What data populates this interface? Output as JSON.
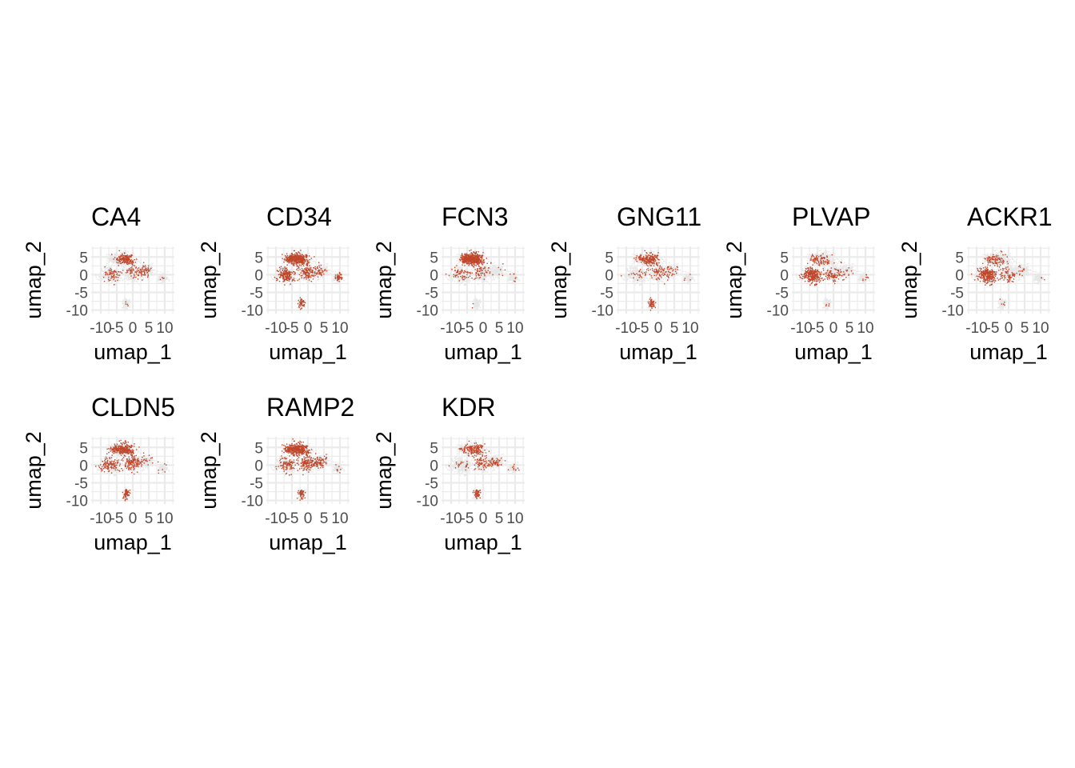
{
  "figure": {
    "colors": {
      "background": "#ffffff",
      "grid": "#ebebeb",
      "low": "#e6e6e6",
      "high": "#c0462a",
      "tick_text": "#4d4d4d",
      "text": "#000000"
    }
  },
  "chart_data": [
    {
      "type": "scatter",
      "title": "CA4",
      "xlabel": "umap_1",
      "ylabel": "umap_2",
      "xticks": [
        -10,
        -5,
        0,
        5,
        10
      ],
      "yticks": [
        5,
        0,
        -5,
        -10
      ],
      "xlim": [
        -13,
        13
      ],
      "ylim": [
        -11,
        8
      ],
      "grid": true,
      "hotspots": [
        {
          "x": -1,
          "y": 4,
          "r": 3.5,
          "w": 0.5
        },
        {
          "x": 3,
          "y": 1,
          "r": 3,
          "w": 0.4
        },
        {
          "x": -6,
          "y": 0,
          "r": 3,
          "w": 0.25
        }
      ]
    },
    {
      "type": "scatter",
      "title": "CD34",
      "xlabel": "umap_1",
      "ylabel": "umap_2",
      "xticks": [
        -10,
        -5,
        0,
        5,
        10
      ],
      "yticks": [
        5,
        0,
        -5,
        -10
      ],
      "xlim": [
        -13,
        13
      ],
      "ylim": [
        -11,
        8
      ],
      "grid": true,
      "hotspots": [
        {
          "x": -3,
          "y": 4,
          "r": 5,
          "w": 0.75
        },
        {
          "x": -7,
          "y": 0,
          "r": 4,
          "w": 0.5
        },
        {
          "x": 0,
          "y": 0,
          "r": 5,
          "w": 0.45
        },
        {
          "x": -2,
          "y": -8,
          "r": 3,
          "w": 0.45
        },
        {
          "x": 10,
          "y": -1,
          "r": 2.5,
          "w": 0.35
        }
      ]
    },
    {
      "type": "scatter",
      "title": "FCN3",
      "xlabel": "umap_1",
      "ylabel": "umap_2",
      "xticks": [
        -10,
        -5,
        0,
        5,
        10
      ],
      "yticks": [
        5,
        0,
        -5,
        -10
      ],
      "xlim": [
        -13,
        13
      ],
      "ylim": [
        -11,
        8
      ],
      "grid": true,
      "hotspots": [
        {
          "x": -3,
          "y": 4.5,
          "r": 4.5,
          "w": 0.92
        },
        {
          "x": -8,
          "y": 2,
          "r": 3,
          "w": 0.35
        }
      ]
    },
    {
      "type": "scatter",
      "title": "GNG11",
      "xlabel": "umap_1",
      "ylabel": "umap_2",
      "xticks": [
        -10,
        -5,
        0,
        5,
        10
      ],
      "yticks": [
        5,
        0,
        -5,
        -10
      ],
      "xlim": [
        -13,
        13
      ],
      "ylim": [
        -11,
        8
      ],
      "grid": true,
      "hotspots": [
        {
          "x": -2,
          "y": 4,
          "r": 5,
          "w": 0.35
        },
        {
          "x": -2,
          "y": -8,
          "r": 2.5,
          "w": 0.55
        },
        {
          "x": 2,
          "y": 0,
          "r": 4,
          "w": 0.25
        }
      ]
    },
    {
      "type": "scatter",
      "title": "PLVAP",
      "xlabel": "umap_1",
      "ylabel": "umap_2",
      "xticks": [
        -10,
        -5,
        0,
        5,
        10
      ],
      "yticks": [
        5,
        0,
        -5,
        -10
      ],
      "xlim": [
        -13,
        13
      ],
      "ylim": [
        -11,
        8
      ],
      "grid": true,
      "hotspots": [
        {
          "x": -6,
          "y": -1,
          "r": 5,
          "w": 0.85
        },
        {
          "x": 1,
          "y": -1.5,
          "r": 2.5,
          "w": 0.65
        }
      ]
    },
    {
      "type": "scatter",
      "title": "ACKR1",
      "xlabel": "umap_1",
      "ylabel": "umap_2",
      "xticks": [
        -10,
        -5,
        0,
        5,
        10
      ],
      "yticks": [
        5,
        0,
        -5,
        -10
      ],
      "xlim": [
        -13,
        13
      ],
      "ylim": [
        -11,
        8
      ],
      "grid": true,
      "hotspots": [
        {
          "x": -6,
          "y": -1,
          "r": 5,
          "w": 0.88
        },
        {
          "x": 1,
          "y": -2.5,
          "r": 2.5,
          "w": 0.7
        }
      ]
    },
    {
      "type": "scatter",
      "title": "CLDN5",
      "xlabel": "umap_1",
      "ylabel": "umap_2",
      "xticks": [
        -10,
        -5,
        0,
        5,
        10
      ],
      "yticks": [
        5,
        0,
        -5,
        -10
      ],
      "xlim": [
        -13,
        13
      ],
      "ylim": [
        -11,
        8
      ],
      "grid": true,
      "hotspots": [
        {
          "x": -2,
          "y": 3,
          "r": 6,
          "w": 0.55
        },
        {
          "x": -9,
          "y": 0,
          "r": 3,
          "w": 0.45
        },
        {
          "x": -2,
          "y": -8,
          "r": 3,
          "w": 0.55
        }
      ]
    },
    {
      "type": "scatter",
      "title": "RAMP2",
      "xlabel": "umap_1",
      "ylabel": "umap_2",
      "xticks": [
        -10,
        -5,
        0,
        5,
        10
      ],
      "yticks": [
        5,
        0,
        -5,
        -10
      ],
      "xlim": [
        -13,
        13
      ],
      "ylim": [
        -11,
        8
      ],
      "grid": true,
      "hotspots": [
        {
          "x": -3,
          "y": 3,
          "r": 6,
          "w": 0.7
        },
        {
          "x": -2,
          "y": -8,
          "r": 3,
          "w": 0.55
        },
        {
          "x": 3,
          "y": 0,
          "r": 4,
          "w": 0.45
        }
      ]
    },
    {
      "type": "scatter",
      "title": "KDR",
      "xlabel": "umap_1",
      "ylabel": "umap_2",
      "xticks": [
        -10,
        -5,
        0,
        5,
        10
      ],
      "yticks": [
        5,
        0,
        -5,
        -10
      ],
      "xlim": [
        -13,
        13
      ],
      "ylim": [
        -11,
        8
      ],
      "grid": true,
      "hotspots": [
        {
          "x": -2,
          "y": 3,
          "r": 5,
          "w": 0.35
        },
        {
          "x": -1,
          "y": -8,
          "r": 2.5,
          "w": 0.55
        },
        {
          "x": 4,
          "y": 0,
          "r": 3,
          "w": 0.3
        }
      ]
    }
  ]
}
